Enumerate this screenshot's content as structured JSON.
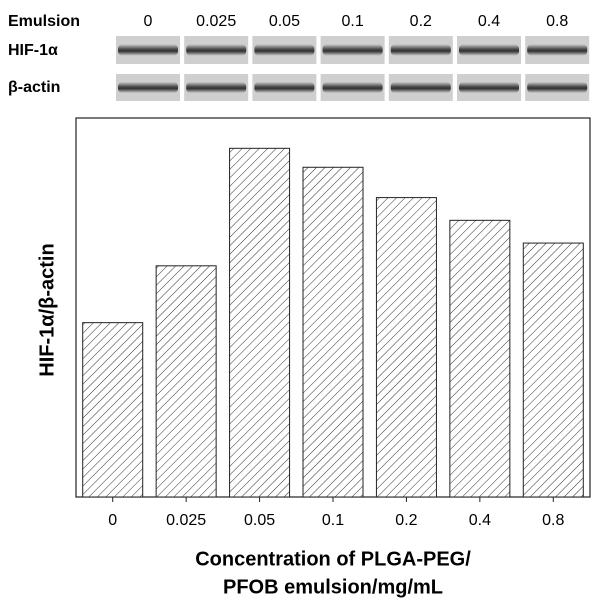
{
  "chart_data": {
    "type": "bar",
    "blot": {
      "header": "Emulsion",
      "rows": [
        "HIF-1α",
        "β-actin"
      ]
    },
    "ylabel": "HIF-1α/β-actin",
    "xlabel": [
      "Concentration of PLGA-PEG/",
      "PFOB emulsion/mg/mL"
    ],
    "categories": [
      "0",
      "0.025",
      "0.05",
      "0.1",
      "0.2",
      "0.4",
      "0.8"
    ],
    "values": [
      0.46,
      0.61,
      0.92,
      0.87,
      0.79,
      0.73,
      0.67
    ],
    "ylim": [
      0,
      1
    ],
    "color": "#333333"
  }
}
